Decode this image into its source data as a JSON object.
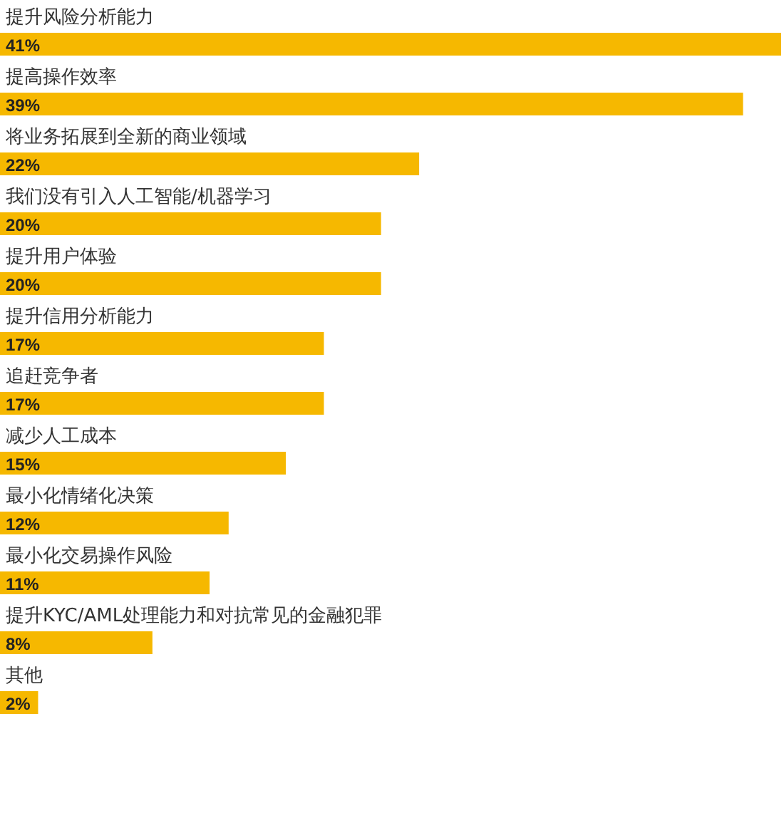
{
  "chart_data": {
    "type": "bar",
    "orientation": "horizontal",
    "categories": [
      "提升风险分析能力",
      "提高操作效率",
      "将业务拓展到全新的商业领域",
      "我们没有引入人工智能/机器学习",
      "提升用户体验",
      "提升信用分析能力",
      "追赶竞争者",
      "减少人工成本",
      "最小化情绪化决策",
      "最小化交易操作风险",
      "提升KYC/AML处理能力和对抗常见的金融犯罪",
      "其他"
    ],
    "values": [
      41,
      39,
      22,
      20,
      20,
      17,
      17,
      15,
      12,
      11,
      8,
      2
    ],
    "value_labels": [
      "41%",
      "39%",
      "22%",
      "20%",
      "20%",
      "17%",
      "17%",
      "15%",
      "12%",
      "11%",
      "8%",
      "2%"
    ],
    "color": "#f6b800"
  }
}
